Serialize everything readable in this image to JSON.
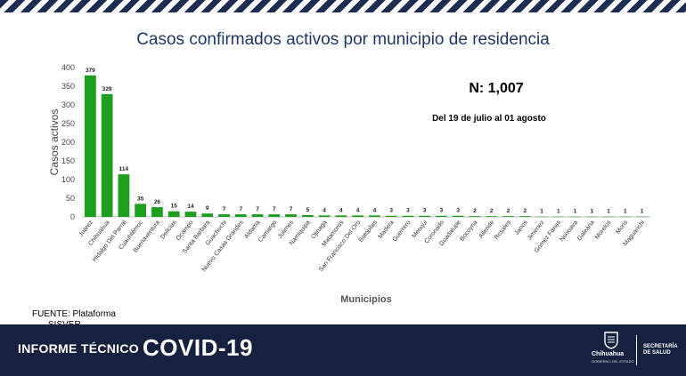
{
  "header": {
    "title": "Casos confirmados activos por municipio de residencia"
  },
  "chart_data": {
    "type": "bar",
    "title": "Casos confirmados activos por municipio de residencia",
    "xlabel": "Municipios",
    "ylabel": "Casos activos",
    "ylim": [
      0,
      400
    ],
    "yticks": [
      0,
      50,
      100,
      150,
      200,
      250,
      300,
      350,
      400
    ],
    "grid": false,
    "bar_color": "#1e9e1e",
    "categories": [
      "Juárez",
      "Chihuahua",
      "Hidalgo Del Parral",
      "Cuauhtémoc",
      "Buenaventura",
      "Delicias",
      "Ocampo",
      "Santa Barbara",
      "Guachochi",
      "Nuevo Casas Grandes",
      "Aldama",
      "Camargo",
      "Julimes",
      "Namiquipa",
      "Ojinaga",
      "Matamoros",
      "San Francisco Del Oro",
      "Batopilas",
      "Madera",
      "Guerrero",
      "Meoqui",
      "Coronado",
      "Guadalupe",
      "Bocoyna",
      "Allende",
      "Rosales",
      "Janos",
      "Jimenez",
      "Gomez Farias",
      "Nonoava",
      "Galeana",
      "Morelos",
      "Moris",
      "Maguarichi"
    ],
    "values": [
      379,
      329,
      114,
      35,
      26,
      15,
      14,
      9,
      7,
      7,
      7,
      7,
      7,
      5,
      4,
      4,
      4,
      4,
      3,
      3,
      3,
      3,
      3,
      2,
      2,
      2,
      2,
      1,
      1,
      1,
      1,
      1,
      1,
      1
    ],
    "annotations": [
      {
        "text": "N: 1,007"
      },
      {
        "text": "Del 19 de julio al 01 agosto"
      }
    ]
  },
  "source": {
    "line1": "FUENTE: Plataforma",
    "line2": "SISVER"
  },
  "footer": {
    "label": "INFORME TÉCNICO",
    "title": "COVID-19",
    "logo_name": "Chihuahua",
    "logo_subtitle": "GOBIERNO DEL ESTADO",
    "secretaria_line1": "SECRETARÍA",
    "secretaria_line2": "DE SALUD"
  },
  "colors": {
    "footer_bg": "#16213f",
    "title": "#1f3763",
    "bar": "#1e9e1e"
  }
}
